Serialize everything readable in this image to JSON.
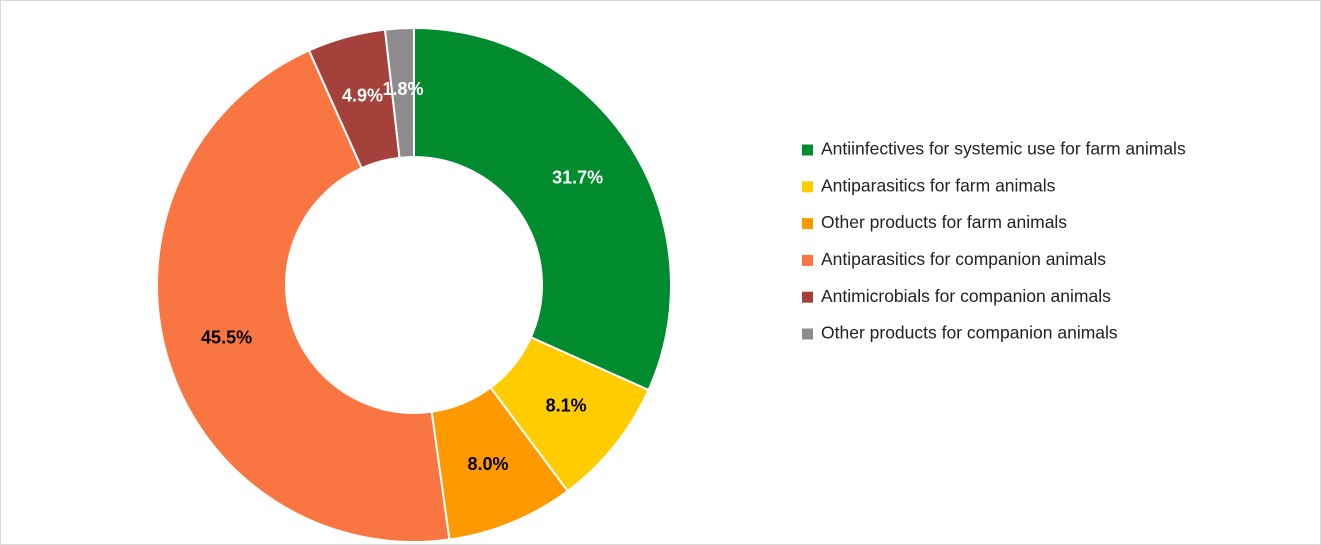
{
  "chart_data": {
    "type": "donut",
    "categories": [
      "Antiinfectives for systemic use for farm animals",
      "Antiparasitics for farm animals",
      "Other products for farm animals",
      "Antiparasitics for companion animals",
      "Antimicrobials for companion animals",
      "Other products for companion animals"
    ],
    "values": [
      31.7,
      8.1,
      8.0,
      45.5,
      4.9,
      1.8
    ],
    "value_labels": [
      "31.7%",
      "8.1%",
      "8.0%",
      "45.5%",
      "4.9%",
      "1.8%"
    ],
    "colors": [
      "#008c2e",
      "#ffcc00",
      "#ff9900",
      "#f97542",
      "#a3413a",
      "#8c8c8c"
    ],
    "label_colors": [
      "#ffffff",
      "#000000",
      "#000000",
      "#000000",
      "#ffffff",
      "#ffffff"
    ],
    "legend": "right"
  }
}
